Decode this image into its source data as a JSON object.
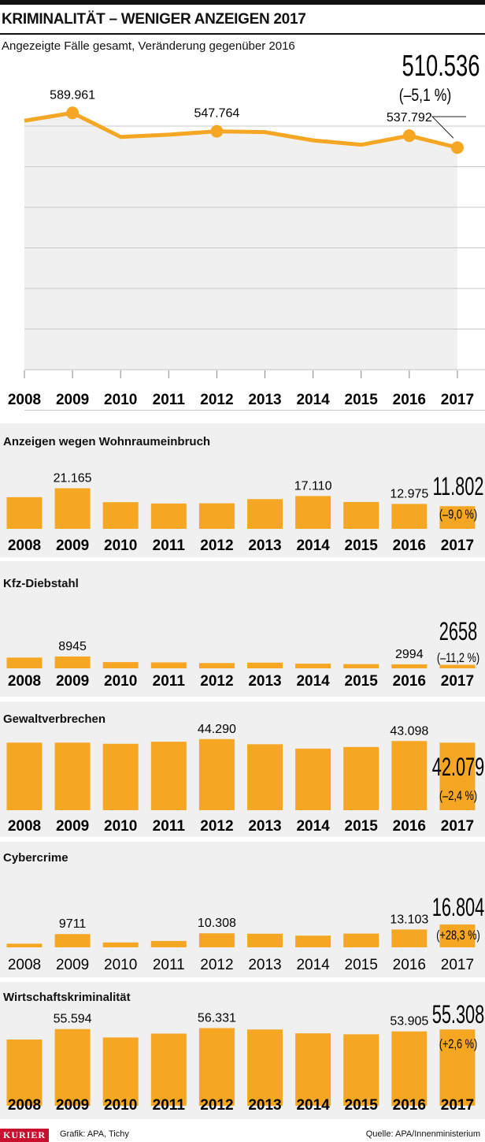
{
  "header": {
    "title": "KRIMINALITÄT – WENIGER ANZEIGEN 2017",
    "subtitle": "Angezeigte Fälle gesamt, Veränderung gegenüber 2016"
  },
  "footer": {
    "brand": "KURIER",
    "credit": "Grafik: APA, Tichy",
    "source": "Quelle: APA/Innenministerium"
  },
  "colors": {
    "accent": "#f5a623",
    "panel_bg": "#f0f0f0",
    "grid": "#cccccc",
    "text": "#111111"
  },
  "chart_data": [
    {
      "type": "line",
      "title": "Angezeigte Fälle gesamt",
      "x": [
        "2008",
        "2009",
        "2010",
        "2011",
        "2012",
        "2013",
        "2014",
        "2015",
        "2016",
        "2017"
      ],
      "values": [
        572000,
        589961,
        535000,
        540000,
        547764,
        546000,
        527000,
        517000,
        537792,
        510536
      ],
      "labels": [
        {
          "year": "2009",
          "text": "589.961"
        },
        {
          "year": "2012",
          "text": "547.764"
        },
        {
          "year": "2016",
          "text": "537.792"
        }
      ],
      "highlight": {
        "year": "2017",
        "text": "510.536",
        "change": "(–5,1 %)"
      },
      "grid": true
    },
    {
      "type": "bar",
      "title": "Anzeigen wegen Wohnraumeinbruch",
      "categories": [
        "2008",
        "2009",
        "2010",
        "2011",
        "2012",
        "2013",
        "2014",
        "2015",
        "2016",
        "2017"
      ],
      "values": [
        16500,
        21165,
        13900,
        13200,
        13300,
        15500,
        17110,
        14000,
        12975,
        11802
      ],
      "labels": [
        {
          "year": "2009",
          "text": "21.165"
        },
        {
          "year": "2014",
          "text": "17.110"
        },
        {
          "year": "2016",
          "text": "12.975"
        }
      ],
      "highlight": {
        "year": "2017",
        "text": "11.802",
        "change": "(–9,0 %)"
      }
    },
    {
      "type": "bar",
      "title": "Kfz-Diebstahl",
      "categories": [
        "2008",
        "2009",
        "2010",
        "2011",
        "2012",
        "2013",
        "2014",
        "2015",
        "2016",
        "2017"
      ],
      "values": [
        8100,
        8945,
        4700,
        4500,
        4000,
        4300,
        3500,
        3200,
        2994,
        2658
      ],
      "labels": [
        {
          "year": "2009",
          "text": "8945"
        },
        {
          "year": "2016",
          "text": "2994"
        }
      ],
      "highlight": {
        "year": "2017",
        "text": "2658",
        "change": "(–11,2 %)"
      }
    },
    {
      "type": "bar",
      "title": "Gewaltverbrechen",
      "categories": [
        "2008",
        "2009",
        "2010",
        "2011",
        "2012",
        "2013",
        "2014",
        "2015",
        "2016",
        "2017"
      ],
      "values": [
        42100,
        42100,
        41400,
        42700,
        44290,
        41100,
        38400,
        39400,
        43098,
        42079
      ],
      "labels": [
        {
          "year": "2012",
          "text": "44.290"
        },
        {
          "year": "2016",
          "text": "43.098"
        }
      ],
      "highlight": {
        "year": "2017",
        "text": "42.079",
        "change": "(–2,4 %)"
      }
    },
    {
      "type": "bar",
      "title": "Cybercrime",
      "categories": [
        "2008",
        "2009",
        "2010",
        "2011",
        "2012",
        "2013",
        "2014",
        "2015",
        "2016",
        "2017"
      ],
      "values": [
        2700,
        9711,
        3600,
        4700,
        10308,
        10000,
        8600,
        10100,
        13103,
        16804
      ],
      "labels": [
        {
          "year": "2009",
          "text": "9711"
        },
        {
          "year": "2012",
          "text": "10.308"
        },
        {
          "year": "2016",
          "text": "13.103"
        }
      ],
      "highlight": {
        "year": "2017",
        "text": "16.804",
        "change": "(+28,3 %)"
      }
    },
    {
      "type": "bar",
      "title": "Wirtschaftskriminalität",
      "categories": [
        "2008",
        "2009",
        "2010",
        "2011",
        "2012",
        "2013",
        "2014",
        "2015",
        "2016",
        "2017"
      ],
      "values": [
        48000,
        55594,
        49500,
        52300,
        56331,
        55300,
        52500,
        51800,
        53905,
        55308
      ],
      "labels": [
        {
          "year": "2009",
          "text": "55.594"
        },
        {
          "year": "2012",
          "text": "56.331"
        },
        {
          "year": "2016",
          "text": "53.905"
        }
      ],
      "highlight": {
        "year": "2017",
        "text": "55.308",
        "change": "(+2,6 %)"
      }
    }
  ]
}
